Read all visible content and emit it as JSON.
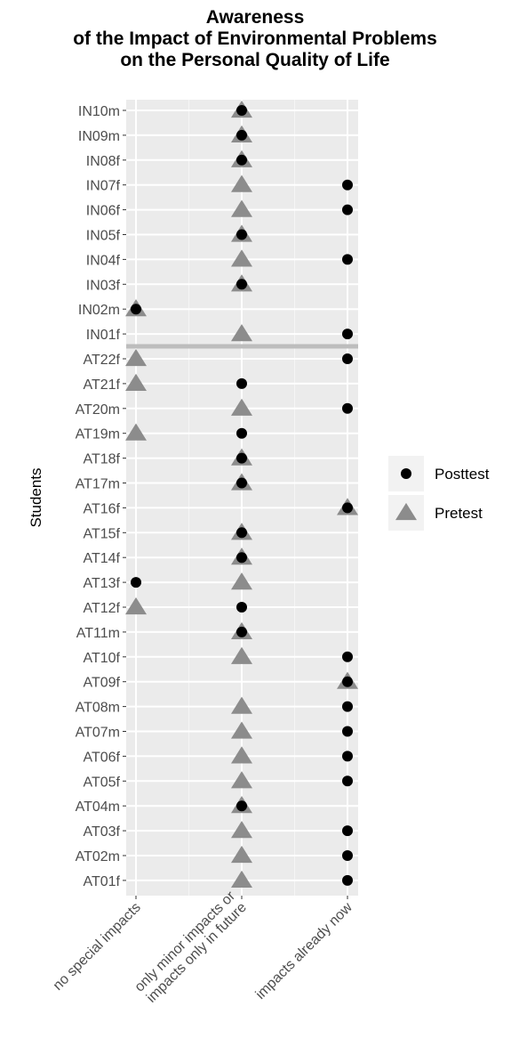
{
  "chart_data": {
    "type": "scatter",
    "title": "Awareness\nof the Impact of Environmental Problems\non the Personal Quality of Life",
    "ylabel": "Students",
    "xlabel": "",
    "x_categories": [
      "no special impacts",
      "only minor impacts or\nimpacts only in future",
      "impacts already now"
    ],
    "y_categories": [
      "IN10m",
      "IN09m",
      "IN08f",
      "IN07f",
      "IN06f",
      "IN05f",
      "IN04f",
      "IN03f",
      "IN02m",
      "IN01f",
      "AT22f",
      "AT21f",
      "AT20m",
      "AT19m",
      "AT18f",
      "AT17m",
      "AT16f",
      "AT15f",
      "AT14f",
      "AT13f",
      "AT12f",
      "AT11m",
      "AT10f",
      "AT09f",
      "AT08m",
      "AT07m",
      "AT06f",
      "AT05f",
      "AT04m",
      "AT03f",
      "AT02m",
      "AT01f"
    ],
    "separator_after": "IN01f",
    "series": [
      {
        "name": "Posttest",
        "marker": "circle",
        "color": "#000000",
        "values": [
          "only minor impacts or\nimpacts only in future",
          "only minor impacts or\nimpacts only in future",
          "only minor impacts or\nimpacts only in future",
          "impacts already now",
          "impacts already now",
          "only minor impacts or\nimpacts only in future",
          "impacts already now",
          "only minor impacts or\nimpacts only in future",
          "no special impacts",
          "impacts already now",
          "impacts already now",
          "only minor impacts or\nimpacts only in future",
          "impacts already now",
          "only minor impacts or\nimpacts only in future",
          "only minor impacts or\nimpacts only in future",
          "only minor impacts or\nimpacts only in future",
          "impacts already now",
          "only minor impacts or\nimpacts only in future",
          "only minor impacts or\nimpacts only in future",
          "no special impacts",
          "only minor impacts or\nimpacts only in future",
          "only minor impacts or\nimpacts only in future",
          "impacts already now",
          "impacts already now",
          "impacts already now",
          "impacts already now",
          "impacts already now",
          "impacts already now",
          "only minor impacts or\nimpacts only in future",
          "impacts already now",
          "impacts already now",
          "impacts already now"
        ]
      },
      {
        "name": "Pretest",
        "marker": "triangle",
        "color": "#8c8c8c",
        "values": [
          "only minor impacts or\nimpacts only in future",
          "only minor impacts or\nimpacts only in future",
          "only minor impacts or\nimpacts only in future",
          "only minor impacts or\nimpacts only in future",
          "only minor impacts or\nimpacts only in future",
          "only minor impacts or\nimpacts only in future",
          "only minor impacts or\nimpacts only in future",
          "only minor impacts or\nimpacts only in future",
          "no special impacts",
          "only minor impacts or\nimpacts only in future",
          "no special impacts",
          "no special impacts",
          "only minor impacts or\nimpacts only in future",
          "no special impacts",
          "only minor impacts or\nimpacts only in future",
          "only minor impacts or\nimpacts only in future",
          "impacts already now",
          "only minor impacts or\nimpacts only in future",
          "only minor impacts or\nimpacts only in future",
          "only minor impacts or\nimpacts only in future",
          "no special impacts",
          "only minor impacts or\nimpacts only in future",
          "only minor impacts or\nimpacts only in future",
          "impacts already now",
          "only minor impacts or\nimpacts only in future",
          "only minor impacts or\nimpacts only in future",
          "only minor impacts or\nimpacts only in future",
          "only minor impacts or\nimpacts only in future",
          "only minor impacts or\nimpacts only in future",
          "only minor impacts or\nimpacts only in future",
          "only minor impacts or\nimpacts only in future",
          "only minor impacts or\nimpacts only in future"
        ]
      }
    ],
    "legend_position": "right",
    "grid": true,
    "panel_color": "#ebebeb"
  }
}
